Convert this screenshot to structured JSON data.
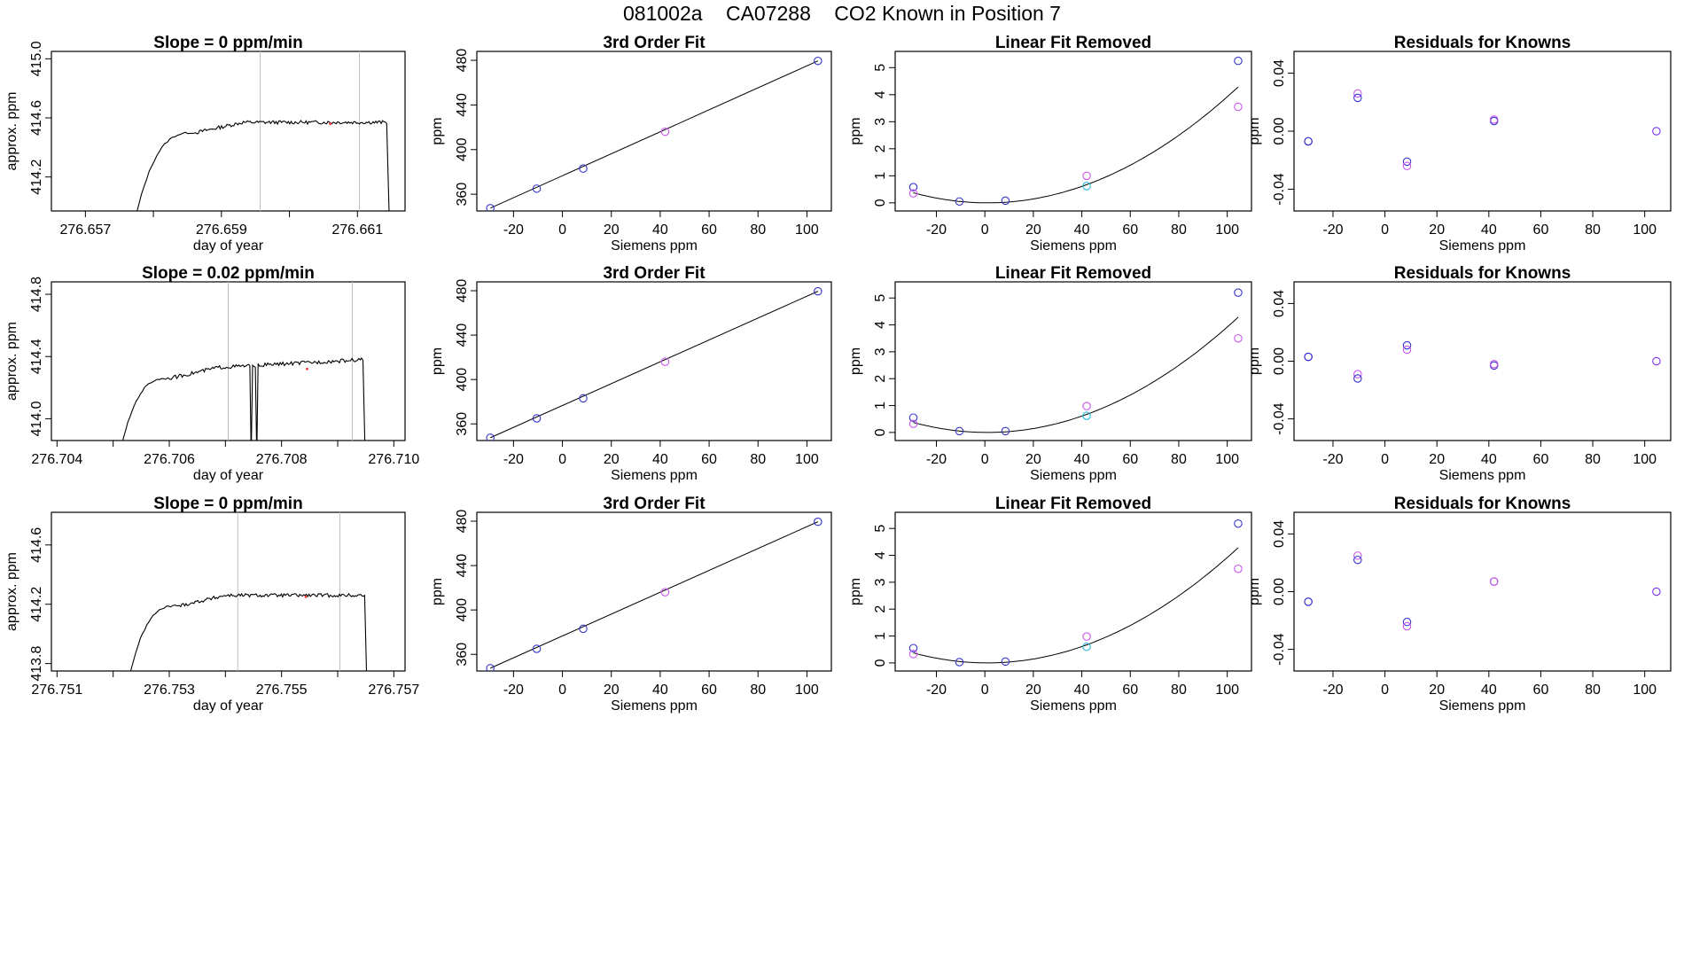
{
  "header": {
    "run_id": "081002a",
    "tank_id": "CA07288",
    "description": "CO2 Known in Position  7"
  },
  "colors": {
    "line": "#000000",
    "frame": "#000000",
    "gridline": "#bebebe",
    "blue": "#3333cc",
    "magenta": "#cc55ee",
    "cyan": "#22bbdd",
    "purple": "#7733ee",
    "red": "#ff3333"
  },
  "chart_data": [
    {
      "type": "line",
      "panel": "r1c1",
      "title": "Slope =  0  ppm/min",
      "xlabel": "day of year",
      "ylabel": "approx. ppm",
      "xlim": [
        276.6565,
        276.6617
      ],
      "ylim": [
        413.97,
        415.05
      ],
      "xticks": [
        {
          "v": 276.657,
          "l": "276.657"
        },
        {
          "v": 276.658,
          "l": ""
        },
        {
          "v": 276.659,
          "l": "276.659"
        },
        {
          "v": 276.66,
          "l": ""
        },
        {
          "v": 276.661,
          "l": "276.661"
        }
      ],
      "yticks": [
        {
          "v": 414.2,
          "l": "414.2"
        },
        {
          "v": 414.6,
          "l": "414.6"
        },
        {
          "v": 415.0,
          "l": "415.0"
        }
      ],
      "vlines": [
        276.65957,
        276.66103
      ],
      "rise_start": 276.65771,
      "plateau_start": 276.65862,
      "drop_end": 276.66147,
      "plateau_level": 414.57,
      "pre_plateau_level": 414.5,
      "noise": 0.012
    },
    {
      "type": "scatter",
      "panel": "r1c2",
      "title": "3rd Order Fit",
      "xlabel": "Siemens ppm",
      "ylabel": "ppm",
      "xlim": [
        -35,
        110
      ],
      "ylim": [
        345,
        488
      ],
      "xticks": [
        {
          "v": -20,
          "l": "-20"
        },
        {
          "v": 0,
          "l": "0"
        },
        {
          "v": 20,
          "l": "20"
        },
        {
          "v": 40,
          "l": "40"
        },
        {
          "v": 60,
          "l": "60"
        },
        {
          "v": 80,
          "l": "80"
        },
        {
          "v": 100,
          "l": "100"
        }
      ],
      "yticks": [
        {
          "v": 360,
          "l": "360"
        },
        {
          "v": 400,
          "l": "400"
        },
        {
          "v": 440,
          "l": "440"
        },
        {
          "v": 480,
          "l": "480"
        }
      ],
      "fit_line": [
        [
          -29.5,
          347.5
        ],
        [
          104.5,
          479.5
        ]
      ],
      "points": [
        {
          "x": -29.5,
          "y": 347.5,
          "c": "blue"
        },
        {
          "x": -10.5,
          "y": 365,
          "c": "blue"
        },
        {
          "x": 8.5,
          "y": 383,
          "c": "blue"
        },
        {
          "x": 42,
          "y": 416,
          "c": "magenta"
        },
        {
          "x": 104.5,
          "y": 479.5,
          "c": "blue"
        }
      ]
    },
    {
      "type": "scatter",
      "panel": "r1c3",
      "title": "Linear Fit Removed",
      "xlabel": "Siemens ppm",
      "ylabel": "ppm",
      "xlim": [
        -37,
        110
      ],
      "ylim": [
        -0.3,
        5.6
      ],
      "xticks": [
        {
          "v": -20,
          "l": "-20"
        },
        {
          "v": 0,
          "l": "0"
        },
        {
          "v": 20,
          "l": "20"
        },
        {
          "v": 40,
          "l": "40"
        },
        {
          "v": 60,
          "l": "60"
        },
        {
          "v": 80,
          "l": "80"
        },
        {
          "v": 100,
          "l": "100"
        }
      ],
      "yticks": [
        {
          "v": 0,
          "l": "0"
        },
        {
          "v": 1,
          "l": "1"
        },
        {
          "v": 2,
          "l": "2"
        },
        {
          "v": 3,
          "l": "3"
        },
        {
          "v": 4,
          "l": "4"
        },
        {
          "v": 5,
          "l": "5"
        }
      ],
      "curve": {
        "a": 0.0004,
        "b": 0,
        "c": 0.0185,
        "x0": 1,
        "from": -29.5,
        "to": 104.5
      },
      "points": [
        {
          "x": -29.5,
          "y": 0.58,
          "c": "blue"
        },
        {
          "x": -29.5,
          "y": 0.35,
          "c": "magenta"
        },
        {
          "x": -10.5,
          "y": 0.05,
          "c": "blue"
        },
        {
          "x": 8.5,
          "y": 0.08,
          "c": "blue"
        },
        {
          "x": 42,
          "y": 1.0,
          "c": "magenta"
        },
        {
          "x": 42,
          "y": 0.62,
          "c": "cyan"
        },
        {
          "x": 104.5,
          "y": 5.25,
          "c": "blue"
        },
        {
          "x": 104.5,
          "y": 3.55,
          "c": "magenta"
        }
      ]
    },
    {
      "type": "scatter",
      "panel": "r1c4",
      "title": "Residuals for Knowns",
      "xlabel": "Siemens ppm",
      "ylabel": "ppm",
      "xlim": [
        -35,
        110
      ],
      "ylim": [
        -0.055,
        0.055
      ],
      "xticks": [
        {
          "v": -20,
          "l": "-20"
        },
        {
          "v": 0,
          "l": "0"
        },
        {
          "v": 20,
          "l": "20"
        },
        {
          "v": 40,
          "l": "40"
        },
        {
          "v": 60,
          "l": "60"
        },
        {
          "v": 80,
          "l": "80"
        },
        {
          "v": 100,
          "l": "100"
        }
      ],
      "yticks": [
        {
          "v": -0.04,
          "l": "-0.04"
        },
        {
          "v": 0.0,
          "l": "0.00"
        },
        {
          "v": 0.04,
          "l": "0.04"
        }
      ],
      "points": [
        {
          "x": -29.5,
          "y": -0.007,
          "c": "purple"
        },
        {
          "x": -29.5,
          "y": -0.007,
          "c": "blue"
        },
        {
          "x": -10.5,
          "y": 0.026,
          "c": "magenta"
        },
        {
          "x": -10.5,
          "y": 0.023,
          "c": "blue"
        },
        {
          "x": 8.5,
          "y": -0.021,
          "c": "blue"
        },
        {
          "x": 8.5,
          "y": -0.024,
          "c": "magenta"
        },
        {
          "x": 42,
          "y": 0.007,
          "c": "blue"
        },
        {
          "x": 42,
          "y": 0.008,
          "c": "magenta"
        },
        {
          "x": 104.5,
          "y": 0.0,
          "c": "purple"
        }
      ]
    },
    {
      "type": "line",
      "panel": "r2c1",
      "title": "Slope =  0.02  ppm/min",
      "xlabel": "day of year",
      "ylabel": "approx. ppm",
      "xlim": [
        276.7039,
        276.7102
      ],
      "ylim": [
        413.86,
        414.88
      ],
      "xticks": [
        {
          "v": 276.704,
          "l": "276.704"
        },
        {
          "v": 276.705,
          "l": ""
        },
        {
          "v": 276.706,
          "l": "276.706"
        },
        {
          "v": 276.707,
          "l": ""
        },
        {
          "v": 276.708,
          "l": "276.708"
        },
        {
          "v": 276.709,
          "l": ""
        },
        {
          "v": 276.71,
          "l": "276.710"
        }
      ],
      "yticks": [
        {
          "v": 414.0,
          "l": "414.0"
        },
        {
          "v": 414.4,
          "l": "414.4"
        },
        {
          "v": 414.8,
          "l": "414.8"
        }
      ],
      "vlines": [
        276.70705,
        276.70926
      ],
      "rise_start": 276.70511,
      "plateau_start": 276.70601,
      "drop_end": 276.70949,
      "plateau_level": 414.33,
      "plateau_end_level": 414.38,
      "pre_plateau_level": 414.26,
      "noise": 0.012,
      "spikes": [
        276.70747,
        276.70757
      ]
    },
    {
      "type": "scatter",
      "panel": "r2c2",
      "title": "3rd Order Fit",
      "xlabel": "Siemens ppm",
      "ylabel": "ppm",
      "xlim": [
        -35,
        110
      ],
      "ylim": [
        345,
        488
      ],
      "xticks": [
        {
          "v": -20,
          "l": "-20"
        },
        {
          "v": 0,
          "l": "0"
        },
        {
          "v": 20,
          "l": "20"
        },
        {
          "v": 40,
          "l": "40"
        },
        {
          "v": 60,
          "l": "60"
        },
        {
          "v": 80,
          "l": "80"
        },
        {
          "v": 100,
          "l": "100"
        }
      ],
      "yticks": [
        {
          "v": 360,
          "l": "360"
        },
        {
          "v": 400,
          "l": "400"
        },
        {
          "v": 440,
          "l": "440"
        },
        {
          "v": 480,
          "l": "480"
        }
      ],
      "fit_line": [
        [
          -29.5,
          347.5
        ],
        [
          104.5,
          479.5
        ]
      ],
      "points": [
        {
          "x": -29.5,
          "y": 347.5,
          "c": "blue"
        },
        {
          "x": -10.5,
          "y": 365,
          "c": "blue"
        },
        {
          "x": 8.5,
          "y": 383,
          "c": "blue"
        },
        {
          "x": 42,
          "y": 416,
          "c": "magenta"
        },
        {
          "x": 104.5,
          "y": 479.5,
          "c": "blue"
        }
      ]
    },
    {
      "type": "scatter",
      "panel": "r2c3",
      "title": "Linear Fit Removed",
      "xlabel": "Siemens ppm",
      "ylabel": "ppm",
      "xlim": [
        -37,
        110
      ],
      "ylim": [
        -0.3,
        5.6
      ],
      "xticks": [
        {
          "v": -20,
          "l": "-20"
        },
        {
          "v": 0,
          "l": "0"
        },
        {
          "v": 20,
          "l": "20"
        },
        {
          "v": 40,
          "l": "40"
        },
        {
          "v": 60,
          "l": "60"
        },
        {
          "v": 80,
          "l": "80"
        },
        {
          "v": 100,
          "l": "100"
        }
      ],
      "yticks": [
        {
          "v": 0,
          "l": "0"
        },
        {
          "v": 1,
          "l": "1"
        },
        {
          "v": 2,
          "l": "2"
        },
        {
          "v": 3,
          "l": "3"
        },
        {
          "v": 4,
          "l": "4"
        },
        {
          "v": 5,
          "l": "5"
        }
      ],
      "curve": {
        "a": 0.0004,
        "b": 0,
        "c": 0.0185,
        "x0": 1,
        "from": -29.5,
        "to": 104.5
      },
      "points": [
        {
          "x": -29.5,
          "y": 0.55,
          "c": "blue"
        },
        {
          "x": -29.5,
          "y": 0.32,
          "c": "magenta"
        },
        {
          "x": -10.5,
          "y": 0.05,
          "c": "blue"
        },
        {
          "x": 8.5,
          "y": 0.05,
          "c": "blue"
        },
        {
          "x": 42,
          "y": 0.98,
          "c": "magenta"
        },
        {
          "x": 42,
          "y": 0.62,
          "c": "cyan"
        },
        {
          "x": 104.5,
          "y": 5.2,
          "c": "blue"
        },
        {
          "x": 104.5,
          "y": 3.5,
          "c": "magenta"
        }
      ]
    },
    {
      "type": "scatter",
      "panel": "r2c4",
      "title": "Residuals for Knowns",
      "xlabel": "Siemens ppm",
      "ylabel": "ppm",
      "xlim": [
        -35,
        110
      ],
      "ylim": [
        -0.055,
        0.055
      ],
      "xticks": [
        {
          "v": -20,
          "l": "-20"
        },
        {
          "v": 0,
          "l": "0"
        },
        {
          "v": 20,
          "l": "20"
        },
        {
          "v": 40,
          "l": "40"
        },
        {
          "v": 60,
          "l": "60"
        },
        {
          "v": 80,
          "l": "80"
        },
        {
          "v": 100,
          "l": "100"
        }
      ],
      "yticks": [
        {
          "v": -0.04,
          "l": "-0.04"
        },
        {
          "v": 0.0,
          "l": "0.00"
        },
        {
          "v": 0.04,
          "l": "0.04"
        }
      ],
      "points": [
        {
          "x": -29.5,
          "y": 0.003,
          "c": "purple"
        },
        {
          "x": -29.5,
          "y": 0.003,
          "c": "blue"
        },
        {
          "x": -10.5,
          "y": -0.009,
          "c": "magenta"
        },
        {
          "x": -10.5,
          "y": -0.012,
          "c": "blue"
        },
        {
          "x": 8.5,
          "y": 0.011,
          "c": "blue"
        },
        {
          "x": 8.5,
          "y": 0.008,
          "c": "magenta"
        },
        {
          "x": 42,
          "y": -0.003,
          "c": "blue"
        },
        {
          "x": 42,
          "y": -0.002,
          "c": "magenta"
        },
        {
          "x": 104.5,
          "y": 0.0,
          "c": "purple"
        }
      ]
    },
    {
      "type": "line",
      "panel": "r3c1",
      "title": "Slope =  0  ppm/min",
      "xlabel": "day of year",
      "ylabel": "approx. ppm",
      "xlim": [
        276.7509,
        276.7572
      ],
      "ylim": [
        413.75,
        414.82
      ],
      "xticks": [
        {
          "v": 276.751,
          "l": "276.751"
        },
        {
          "v": 276.752,
          "l": ""
        },
        {
          "v": 276.753,
          "l": "276.753"
        },
        {
          "v": 276.754,
          "l": ""
        },
        {
          "v": 276.755,
          "l": "276.755"
        },
        {
          "v": 276.756,
          "l": ""
        },
        {
          "v": 276.757,
          "l": "276.757"
        }
      ],
      "yticks": [
        {
          "v": 413.8,
          "l": "413.8"
        },
        {
          "v": 414.2,
          "l": "414.2"
        },
        {
          "v": 414.6,
          "l": "414.6"
        }
      ],
      "vlines": [
        276.75422,
        276.75604
      ],
      "rise_start": 276.75225,
      "plateau_start": 276.75318,
      "drop_end": 276.75652,
      "plateau_level": 414.26,
      "pre_plateau_level": 414.19,
      "noise": 0.012
    },
    {
      "type": "scatter",
      "panel": "r3c2",
      "title": "3rd Order Fit",
      "xlabel": "Siemens ppm",
      "ylabel": "ppm",
      "xlim": [
        -35,
        110
      ],
      "ylim": [
        345,
        488
      ],
      "xticks": [
        {
          "v": -20,
          "l": "-20"
        },
        {
          "v": 0,
          "l": "0"
        },
        {
          "v": 20,
          "l": "20"
        },
        {
          "v": 40,
          "l": "40"
        },
        {
          "v": 60,
          "l": "60"
        },
        {
          "v": 80,
          "l": "80"
        },
        {
          "v": 100,
          "l": "100"
        }
      ],
      "yticks": [
        {
          "v": 360,
          "l": "360"
        },
        {
          "v": 400,
          "l": "400"
        },
        {
          "v": 440,
          "l": "440"
        },
        {
          "v": 480,
          "l": "480"
        }
      ],
      "fit_line": [
        [
          -29.5,
          347.5
        ],
        [
          104.5,
          479.5
        ]
      ],
      "points": [
        {
          "x": -29.5,
          "y": 347.5,
          "c": "blue"
        },
        {
          "x": -10.5,
          "y": 365,
          "c": "blue"
        },
        {
          "x": 8.5,
          "y": 383,
          "c": "blue"
        },
        {
          "x": 42,
          "y": 416,
          "c": "magenta"
        },
        {
          "x": 104.5,
          "y": 479.5,
          "c": "blue"
        }
      ]
    },
    {
      "type": "scatter",
      "panel": "r3c3",
      "title": "Linear Fit Removed",
      "xlabel": "Siemens ppm",
      "ylabel": "ppm",
      "xlim": [
        -37,
        110
      ],
      "ylim": [
        -0.3,
        5.6
      ],
      "xticks": [
        {
          "v": -20,
          "l": "-20"
        },
        {
          "v": 0,
          "l": "0"
        },
        {
          "v": 20,
          "l": "20"
        },
        {
          "v": 40,
          "l": "40"
        },
        {
          "v": 60,
          "l": "60"
        },
        {
          "v": 80,
          "l": "80"
        },
        {
          "v": 100,
          "l": "100"
        }
      ],
      "yticks": [
        {
          "v": 0,
          "l": "0"
        },
        {
          "v": 1,
          "l": "1"
        },
        {
          "v": 2,
          "l": "2"
        },
        {
          "v": 3,
          "l": "3"
        },
        {
          "v": 4,
          "l": "4"
        },
        {
          "v": 5,
          "l": "5"
        }
      ],
      "curve": {
        "a": 0.0004,
        "b": 0,
        "c": 0.0185,
        "x0": 1,
        "from": -29.5,
        "to": 104.5
      },
      "points": [
        {
          "x": -29.5,
          "y": 0.55,
          "c": "blue"
        },
        {
          "x": -29.5,
          "y": 0.33,
          "c": "magenta"
        },
        {
          "x": -10.5,
          "y": 0.03,
          "c": "blue"
        },
        {
          "x": 8.5,
          "y": 0.05,
          "c": "blue"
        },
        {
          "x": 42,
          "y": 0.98,
          "c": "magenta"
        },
        {
          "x": 42,
          "y": 0.6,
          "c": "cyan"
        },
        {
          "x": 104.5,
          "y": 5.18,
          "c": "blue"
        },
        {
          "x": 104.5,
          "y": 3.5,
          "c": "magenta"
        }
      ]
    },
    {
      "type": "scatter",
      "panel": "r3c4",
      "title": "Residuals for Knowns",
      "xlabel": "Siemens ppm",
      "ylabel": "ppm",
      "xlim": [
        -35,
        110
      ],
      "ylim": [
        -0.055,
        0.055
      ],
      "xticks": [
        {
          "v": -20,
          "l": "-20"
        },
        {
          "v": 0,
          "l": "0"
        },
        {
          "v": 20,
          "l": "20"
        },
        {
          "v": 40,
          "l": "40"
        },
        {
          "v": 60,
          "l": "60"
        },
        {
          "v": 80,
          "l": "80"
        },
        {
          "v": 100,
          "l": "100"
        }
      ],
      "yticks": [
        {
          "v": -0.04,
          "l": "-0.04"
        },
        {
          "v": 0.0,
          "l": "0.00"
        },
        {
          "v": 0.04,
          "l": "0.04"
        }
      ],
      "points": [
        {
          "x": -29.5,
          "y": -0.007,
          "c": "purple"
        },
        {
          "x": -29.5,
          "y": -0.007,
          "c": "blue"
        },
        {
          "x": -10.5,
          "y": 0.025,
          "c": "magenta"
        },
        {
          "x": -10.5,
          "y": 0.022,
          "c": "blue"
        },
        {
          "x": 8.5,
          "y": -0.021,
          "c": "blue"
        },
        {
          "x": 8.5,
          "y": -0.024,
          "c": "magenta"
        },
        {
          "x": 42,
          "y": 0.007,
          "c": "blue"
        },
        {
          "x": 42,
          "y": 0.007,
          "c": "magenta"
        },
        {
          "x": 104.5,
          "y": 0.0,
          "c": "purple"
        }
      ]
    }
  ]
}
